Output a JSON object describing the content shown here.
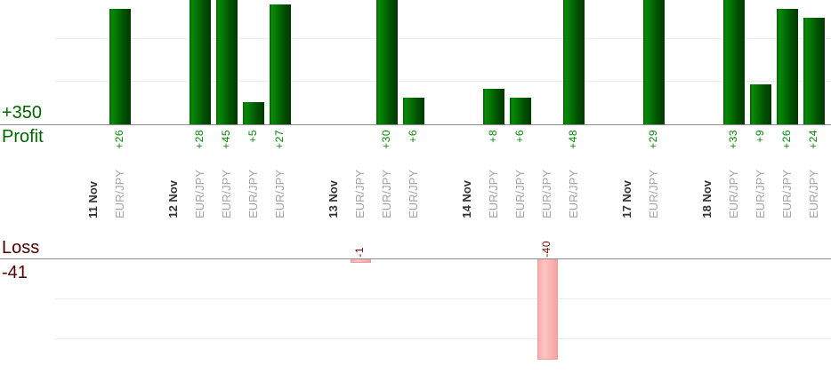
{
  "chart_data": {
    "type": "bar",
    "title": "",
    "xlabel": "",
    "ylabel": "",
    "profit_axis": {
      "total_label": "+350",
      "label": "Profit",
      "total": 350,
      "gridline_interval": 10
    },
    "loss_axis": {
      "label": "Loss",
      "total_label": "-41",
      "total": -41
    },
    "groups": [
      {
        "date": "11 Nov",
        "trades": [
          {
            "instrument": "EUR/JPY",
            "value": 26,
            "label": "+26"
          }
        ]
      },
      {
        "date": "12 Nov",
        "trades": [
          {
            "instrument": "EUR/JPY",
            "value": 28,
            "label": "+28"
          },
          {
            "instrument": "EUR/JPY",
            "value": 45,
            "label": "+45"
          },
          {
            "instrument": "EUR/JPY",
            "value": 5,
            "label": "+5"
          },
          {
            "instrument": "EUR/JPY",
            "value": 27,
            "label": "+27"
          }
        ]
      },
      {
        "date": "13 Nov",
        "trades": [
          {
            "instrument": "EUR/JPY",
            "value": -1,
            "label": "-1"
          },
          {
            "instrument": "EUR/JPY",
            "value": 30,
            "label": "+30"
          },
          {
            "instrument": "EUR/JPY",
            "value": 6,
            "label": "+6"
          }
        ]
      },
      {
        "date": "14 Nov",
        "trades": [
          {
            "instrument": "EUR/JPY",
            "value": 8,
            "label": "+8"
          },
          {
            "instrument": "EUR/JPY",
            "value": 6,
            "label": "+6"
          },
          {
            "instrument": "EUR/JPY",
            "value": -40,
            "label": "-40"
          },
          {
            "instrument": "EUR/JPY",
            "value": 48,
            "label": "+48"
          }
        ]
      },
      {
        "date": "17 Nov",
        "trades": [
          {
            "instrument": "EUR/JPY",
            "value": 29,
            "label": "+29"
          }
        ]
      },
      {
        "date": "18 Nov",
        "trades": [
          {
            "instrument": "EUR/JPY",
            "value": 33,
            "label": "+33"
          },
          {
            "instrument": "EUR/JPY",
            "value": 9,
            "label": "+9"
          },
          {
            "instrument": "EUR/JPY",
            "value": 26,
            "label": "+26"
          },
          {
            "instrument": "EUR/JPY",
            "value": 24,
            "label": "+24"
          }
        ]
      }
    ]
  },
  "colors": {
    "profit_bar_light": "#078a07",
    "profit_bar_dark": "#003a00",
    "loss_bar": "#fbb6b6",
    "loss_bar_border": "#f09c9c",
    "profit_value_text": "#078407",
    "loss_value_text": "#6e0a0a",
    "profit_axis_text": "#006600",
    "loss_axis_text": "#4d0000",
    "date_text": "#333333",
    "instrument_text": "#a3a3a3",
    "baseline": "#8c8c8c",
    "gridline": "#ececec",
    "background": "#ffffff"
  }
}
